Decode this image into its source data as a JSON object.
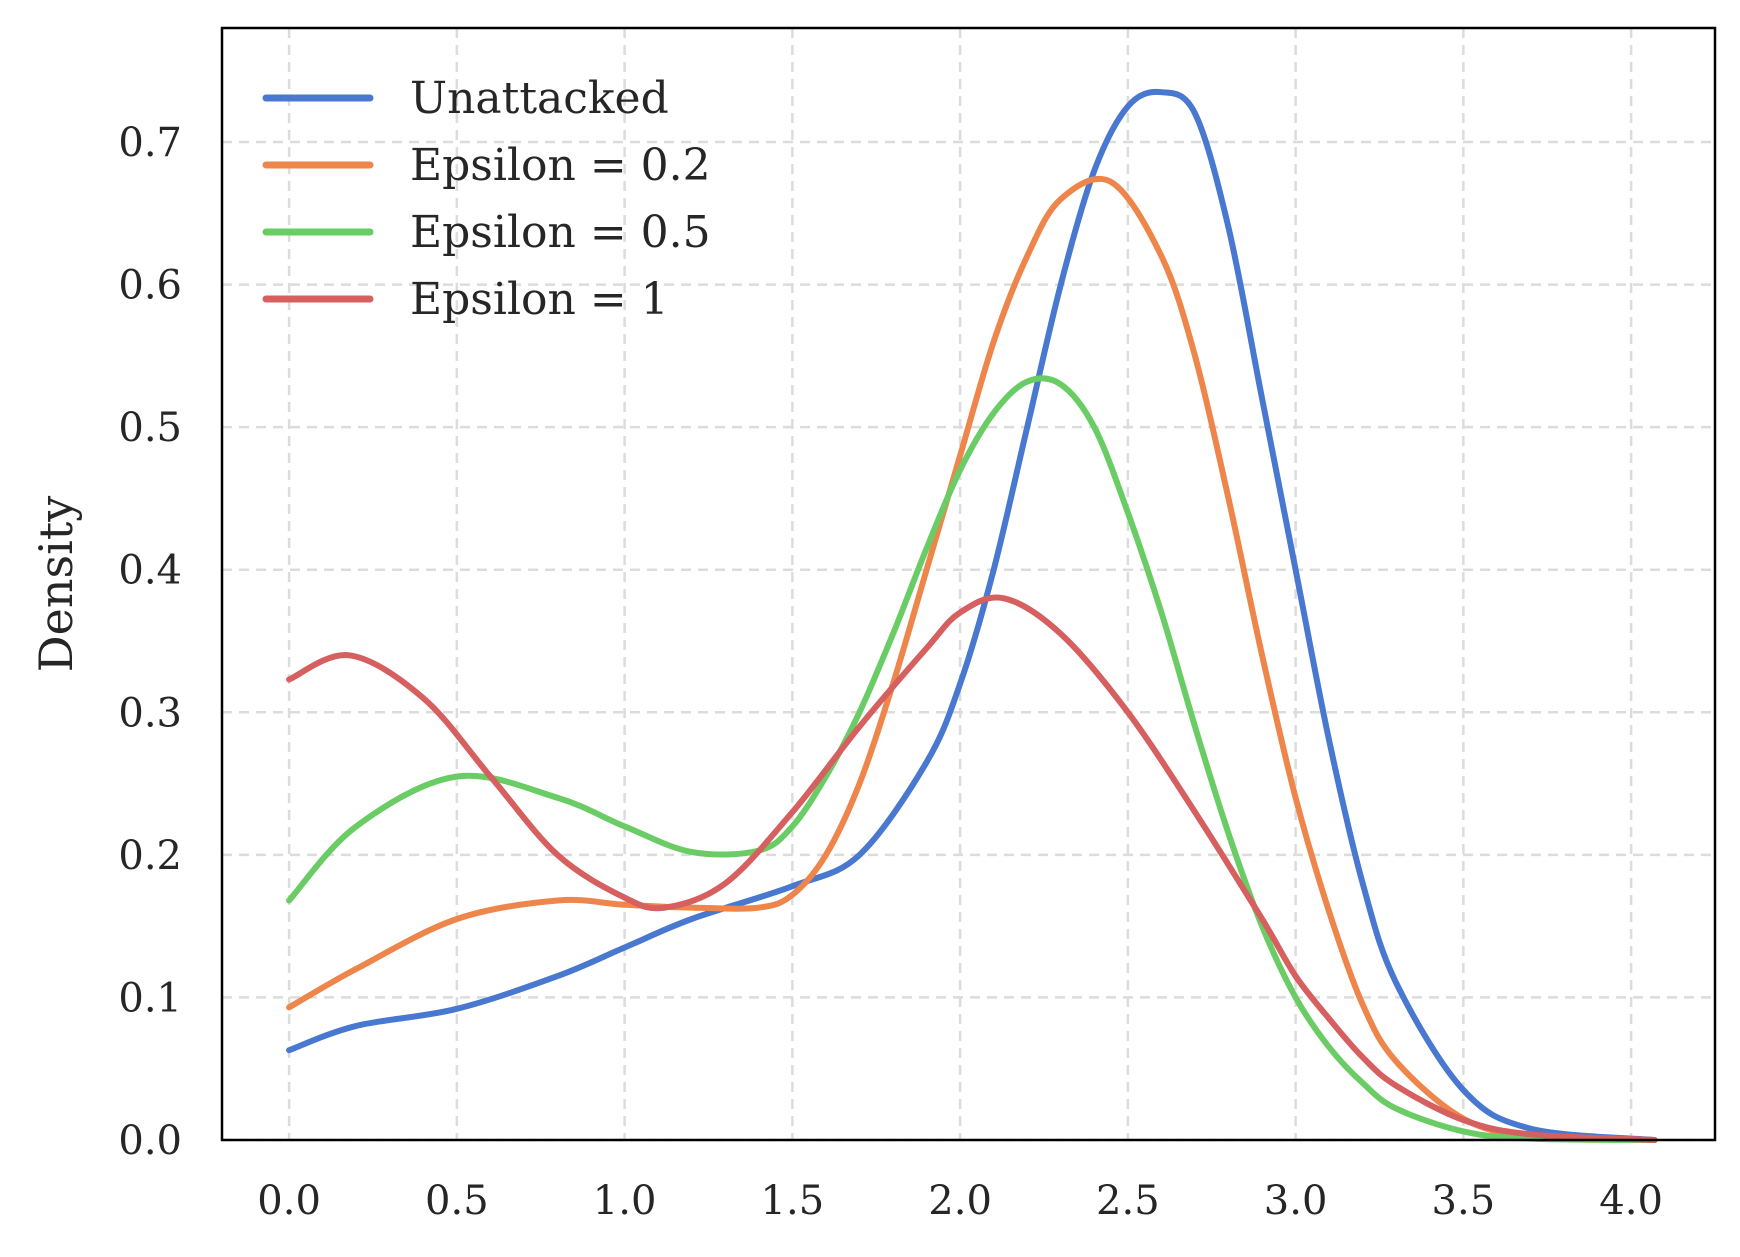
{
  "chart_data": {
    "type": "line",
    "title": "",
    "xlabel": "",
    "ylabel": "Density",
    "xlim": [
      -0.2,
      4.25
    ],
    "ylim": [
      0.0,
      0.78
    ],
    "grid": true,
    "legend_position": "top-left",
    "x_ticks": [
      "0.0",
      "0.5",
      "1.0",
      "1.5",
      "2.0",
      "2.5",
      "3.0",
      "3.5",
      "4.0"
    ],
    "y_ticks": [
      "0.0",
      "0.1",
      "0.2",
      "0.3",
      "0.4",
      "0.5",
      "0.6",
      "0.7"
    ],
    "series": [
      {
        "name": "Unattacked",
        "color": "#4878cf",
        "x": [
          0.0,
          0.2,
          0.5,
          0.8,
          1.0,
          1.2,
          1.5,
          1.7,
          1.9,
          2.0,
          2.1,
          2.2,
          2.3,
          2.4,
          2.5,
          2.6,
          2.7,
          2.8,
          2.9,
          3.0,
          3.1,
          3.2,
          3.3,
          3.5,
          3.7,
          4.07
        ],
        "y": [
          0.063,
          0.08,
          0.092,
          0.115,
          0.135,
          0.155,
          0.178,
          0.2,
          0.265,
          0.32,
          0.4,
          0.5,
          0.6,
          0.68,
          0.725,
          0.735,
          0.72,
          0.64,
          0.52,
          0.4,
          0.28,
          0.18,
          0.11,
          0.035,
          0.008,
          0.0
        ]
      },
      {
        "name": "Epsilon = 0.2",
        "color": "#ee854a",
        "x": [
          0.0,
          0.2,
          0.5,
          0.8,
          1.0,
          1.2,
          1.4,
          1.5,
          1.6,
          1.7,
          1.8,
          1.9,
          2.0,
          2.1,
          2.2,
          2.3,
          2.45,
          2.6,
          2.7,
          2.8,
          2.9,
          3.0,
          3.1,
          3.2,
          3.3,
          3.5,
          3.7,
          4.07
        ],
        "y": [
          0.093,
          0.12,
          0.155,
          0.168,
          0.165,
          0.163,
          0.163,
          0.172,
          0.2,
          0.25,
          0.32,
          0.4,
          0.48,
          0.56,
          0.62,
          0.66,
          0.672,
          0.62,
          0.55,
          0.45,
          0.34,
          0.24,
          0.16,
          0.095,
          0.055,
          0.015,
          0.003,
          0.0
        ]
      },
      {
        "name": "Epsilon = 0.5",
        "color": "#6acc64",
        "x": [
          0.0,
          0.2,
          0.5,
          0.8,
          1.0,
          1.2,
          1.4,
          1.5,
          1.6,
          1.7,
          1.8,
          1.9,
          2.0,
          2.1,
          2.2,
          2.3,
          2.4,
          2.5,
          2.6,
          2.7,
          2.8,
          2.9,
          3.0,
          3.1,
          3.2,
          3.3,
          3.5,
          3.7,
          4.07
        ],
        "y": [
          0.168,
          0.22,
          0.255,
          0.24,
          0.22,
          0.202,
          0.203,
          0.22,
          0.255,
          0.3,
          0.355,
          0.415,
          0.47,
          0.51,
          0.532,
          0.53,
          0.5,
          0.44,
          0.37,
          0.29,
          0.215,
          0.15,
          0.1,
          0.065,
          0.04,
          0.022,
          0.006,
          0.001,
          0.0
        ]
      },
      {
        "name": "Epsilon = 1",
        "color": "#d65f5f",
        "x": [
          0.0,
          0.18,
          0.4,
          0.6,
          0.8,
          1.0,
          1.12,
          1.3,
          1.5,
          1.7,
          1.9,
          2.0,
          2.13,
          2.3,
          2.5,
          2.7,
          2.9,
          3.0,
          3.1,
          3.2,
          3.3,
          3.5,
          3.7,
          4.07
        ],
        "y": [
          0.323,
          0.34,
          0.31,
          0.255,
          0.2,
          0.17,
          0.163,
          0.18,
          0.23,
          0.29,
          0.345,
          0.37,
          0.38,
          0.355,
          0.3,
          0.23,
          0.155,
          0.115,
          0.085,
          0.058,
          0.038,
          0.014,
          0.004,
          0.0
        ]
      }
    ]
  }
}
